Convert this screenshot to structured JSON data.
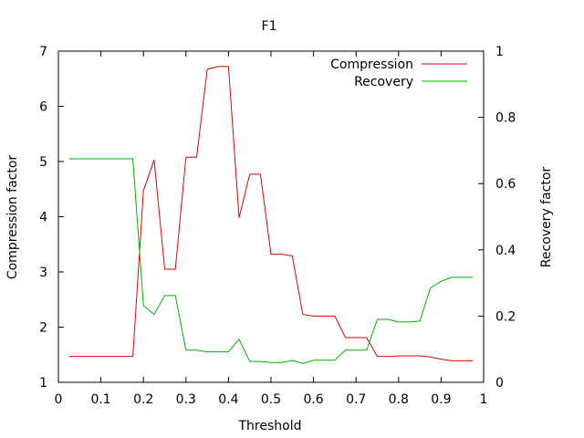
{
  "chart_data": {
    "type": "line",
    "title": "F1",
    "xlabel": "Threshold",
    "ylabel": "Compression factor",
    "y2label": "Recovery factor",
    "xlim": [
      0,
      1
    ],
    "ylim": [
      1,
      7
    ],
    "y2lim": [
      0,
      1
    ],
    "x_ticks": [
      "0",
      "0.1",
      "0.2",
      "0.3",
      "0.4",
      "0.5",
      "0.6",
      "0.7",
      "0.8",
      "0.9",
      "1"
    ],
    "y_ticks": [
      "1",
      "2",
      "3",
      "4",
      "5",
      "6",
      "7"
    ],
    "y2_ticks": [
      "0",
      "0.2",
      "0.4",
      "0.6",
      "0.8",
      "1"
    ],
    "legend_position": "top-right",
    "grid": false,
    "series": [
      {
        "name": "Compression",
        "color": "#e00000",
        "axis": "left",
        "x": [
          0.025,
          0.05,
          0.075,
          0.1,
          0.125,
          0.15,
          0.175,
          0.2,
          0.225,
          0.25,
          0.275,
          0.3,
          0.325,
          0.35,
          0.375,
          0.4,
          0.425,
          0.45,
          0.475,
          0.5,
          0.525,
          0.55,
          0.575,
          0.6,
          0.625,
          0.65,
          0.675,
          0.7,
          0.725,
          0.75,
          0.775,
          0.8,
          0.825,
          0.85,
          0.875,
          0.9,
          0.925,
          0.95,
          0.975
        ],
        "values": [
          1.47,
          1.47,
          1.47,
          1.47,
          1.47,
          1.47,
          1.47,
          4.47,
          5.03,
          3.05,
          3.05,
          5.08,
          5.08,
          6.67,
          6.72,
          6.72,
          3.98,
          4.77,
          4.77,
          3.32,
          3.32,
          3.29,
          2.23,
          2.2,
          2.2,
          2.2,
          1.81,
          1.81,
          1.81,
          1.47,
          1.47,
          1.48,
          1.48,
          1.48,
          1.46,
          1.42,
          1.39,
          1.39,
          1.39
        ]
      },
      {
        "name": "Recovery",
        "color": "#00b000",
        "axis": "right",
        "x": [
          0.025,
          0.05,
          0.075,
          0.1,
          0.125,
          0.15,
          0.175,
          0.2,
          0.225,
          0.25,
          0.275,
          0.3,
          0.325,
          0.35,
          0.375,
          0.4,
          0.425,
          0.45,
          0.475,
          0.5,
          0.525,
          0.55,
          0.575,
          0.6,
          0.625,
          0.65,
          0.675,
          0.7,
          0.725,
          0.75,
          0.775,
          0.8,
          0.825,
          0.85,
          0.875,
          0.9,
          0.925,
          0.95,
          0.975
        ],
        "values": [
          0.675,
          0.675,
          0.675,
          0.675,
          0.675,
          0.675,
          0.675,
          0.232,
          0.205,
          0.262,
          0.262,
          0.097,
          0.097,
          0.092,
          0.092,
          0.092,
          0.13,
          0.063,
          0.063,
          0.06,
          0.06,
          0.066,
          0.057,
          0.067,
          0.067,
          0.067,
          0.097,
          0.097,
          0.097,
          0.19,
          0.19,
          0.182,
          0.182,
          0.185,
          0.285,
          0.305,
          0.317,
          0.317,
          0.317
        ]
      }
    ]
  }
}
